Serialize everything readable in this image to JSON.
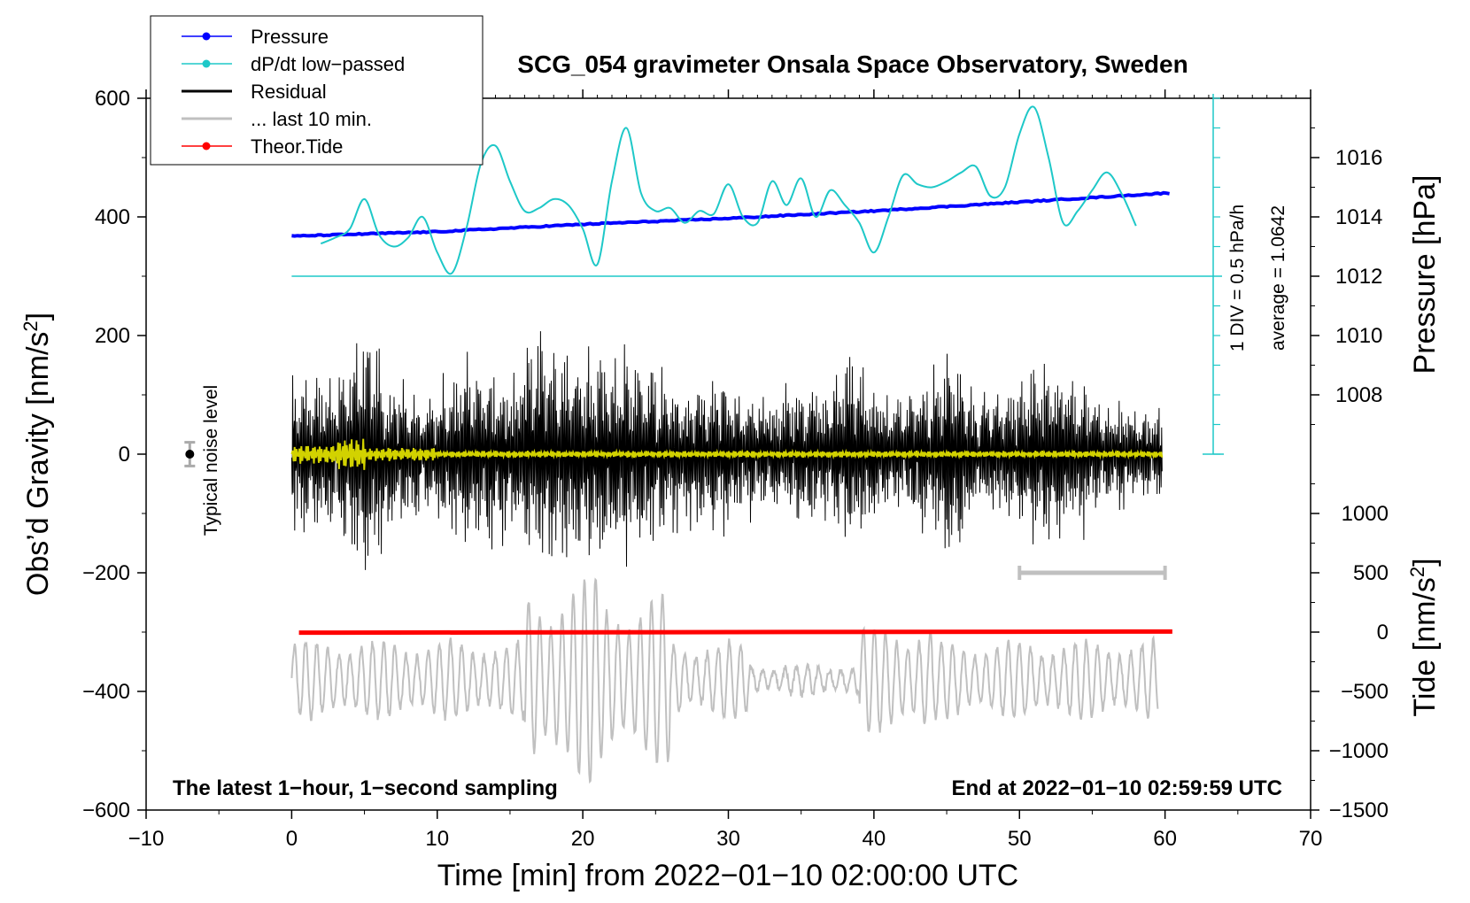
{
  "chart_data": {
    "type": "line",
    "title": "SCG_054 gravimeter Onsala Space Observatory, Sweden",
    "xlabel": "Time [min] from 2022−01−10 02:00:00 UTC",
    "ylabel_main": "Obs’d Gravity [nm/s",
    "ylabel_main_sup": "2",
    "ylabel_main_end": "]",
    "ylabel_pressure": "Pressure [hPa]",
    "ylabel_tide": "Tide [nm/s",
    "ylabel_tide_sup": "2",
    "ylabel_tide_end": "]",
    "xlim": [
      -10,
      70
    ],
    "ylim": [
      -600,
      600
    ],
    "x_ticks": [
      -10,
      0,
      10,
      20,
      30,
      40,
      50,
      60,
      70
    ],
    "x_tick_labels": [
      "−10",
      "0",
      "10",
      "20",
      "30",
      "40",
      "50",
      "60",
      "70"
    ],
    "y_ticks": [
      -600,
      -400,
      -200,
      0,
      200,
      400,
      600
    ],
    "y_tick_labels": [
      "−600",
      "−400",
      "−200",
      "0",
      "200",
      "400",
      "600"
    ],
    "pressure_axis": {
      "ticks": [
        1008,
        1010,
        1012,
        1014,
        1016
      ],
      "tick_labels": [
        "1008",
        "1010",
        "1012",
        "1014",
        "1016"
      ],
      "gravity_at_1012": 300,
      "gravity_per_hpa": 50
    },
    "tide_axis": {
      "ticks": [
        -1500,
        -1000,
        -500,
        0,
        500,
        1000
      ],
      "tick_labels": [
        "−1500",
        "−1000",
        "−500",
        "0",
        "500",
        "1000"
      ],
      "gravity_at_zero": -300,
      "gravity_per_unit": 0.2
    },
    "legend": [
      {
        "label": "Pressure",
        "color": "#0000ff",
        "marker": true
      },
      {
        "label": "dP/dt low−passed",
        "color": "#1ec8c8",
        "marker": true
      },
      {
        "label": "Residual",
        "color": "#000000",
        "marker": false
      },
      {
        "label": "... last 10 min.",
        "color": "#c0c0c0",
        "marker": false
      },
      {
        "label": "Theor.Tide",
        "color": "#ff0000",
        "marker": true
      }
    ],
    "series": [
      {
        "name": "Pressure",
        "color": "#0000ff",
        "x": [
          0,
          10,
          20,
          30,
          40,
          50,
          60
        ],
        "y": [
          1013.35,
          1013.5,
          1013.75,
          1013.95,
          1014.2,
          1014.5,
          1014.8
        ]
      },
      {
        "name": "dP/dt low−passed",
        "color": "#1ec8c8",
        "x": [
          2,
          3,
          4,
          5,
          6,
          7,
          8,
          9,
          10,
          11,
          12,
          13,
          14,
          15,
          16,
          17,
          18,
          19,
          20,
          21,
          22,
          23,
          24,
          25,
          26,
          27,
          28,
          29,
          30,
          31,
          32,
          33,
          34,
          35,
          36,
          37,
          38,
          39,
          40,
          41,
          42,
          43,
          44,
          45,
          46,
          47,
          48,
          49,
          50,
          51,
          52,
          53,
          54,
          55,
          56,
          57,
          58
        ],
        "y": [
          355,
          365,
          380,
          430,
          370,
          350,
          365,
          400,
          340,
          305,
          380,
          490,
          520,
          460,
          410,
          415,
          430,
          420,
          380,
          320,
          460,
          550,
          440,
          410,
          415,
          390,
          410,
          405,
          455,
          400,
          390,
          460,
          420,
          465,
          400,
          445,
          420,
          390,
          340,
          400,
          470,
          455,
          450,
          460,
          475,
          485,
          435,
          450,
          540,
          585,
          500,
          390,
          410,
          445,
          475,
          440,
          385
        ]
      },
      {
        "name": "Theor.Tide",
        "color": "#ff0000",
        "x": [
          0.5,
          60.5
        ],
        "y": [
          -5,
          5
        ]
      }
    ],
    "noise_level": {
      "label": "Typical noise level",
      "x": -7,
      "y": 0,
      "err": 20
    },
    "range_bar": {
      "x": [
        50,
        60
      ],
      "y": -200
    },
    "pressure_scale_note": "1 DIV = 0.5 hPa/h",
    "average_note": "average = 1.0642",
    "annotation_left": "The latest 1−hour, 1−second sampling",
    "annotation_right": "End at 2022−01−10 02:59:59 UTC"
  }
}
